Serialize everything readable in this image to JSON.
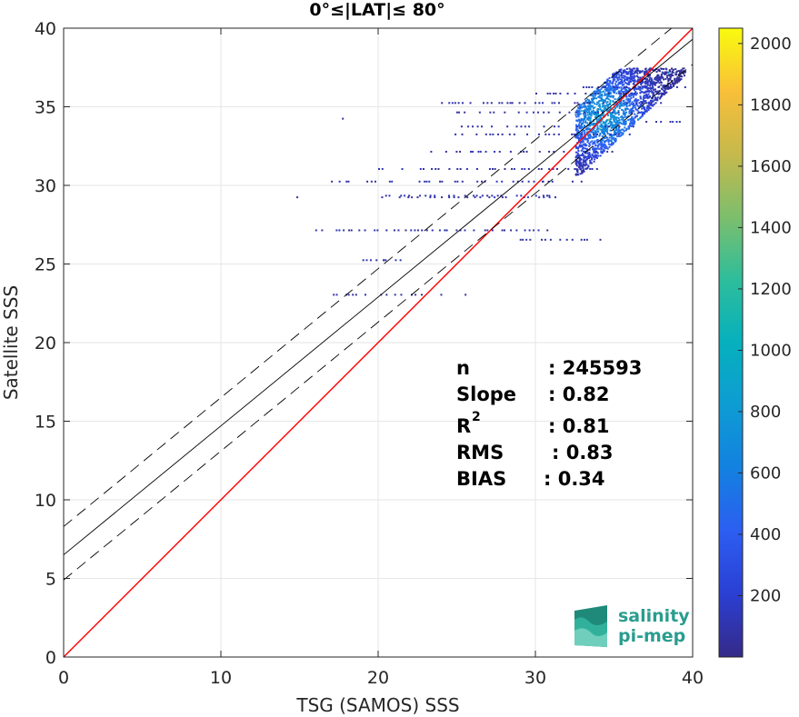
{
  "chart_data": {
    "type": "heatmap",
    "title": "0°≤|LAT|≤ 80°",
    "xlabel": "TSG (SAMOS) SSS",
    "ylabel": "Satellite SSS",
    "xlim": [
      0,
      40
    ],
    "ylim": [
      0,
      40
    ],
    "xticks": [
      "0",
      "10",
      "20",
      "30",
      "40"
    ],
    "yticks": [
      "0",
      "5",
      "10",
      "15",
      "20",
      "25",
      "30",
      "35",
      "40"
    ],
    "grid": true,
    "colorbar": {
      "range": [
        0,
        2050
      ],
      "ticks": [
        "200",
        "400",
        "600",
        "800",
        "1000",
        "1200",
        "1400",
        "1600",
        "1800",
        "2000"
      ],
      "colormap": "parula"
    },
    "lines": [
      {
        "role": "one-to-one",
        "color": "#ff0000",
        "style": "solid",
        "slope": 1.0,
        "intercept": 0.0
      },
      {
        "role": "regression fit",
        "color": "#000000",
        "style": "solid",
        "slope": 0.82,
        "intercept": 6.5
      },
      {
        "role": "fit upper bound",
        "color": "#000000",
        "style": "dashed",
        "slope": 0.82,
        "intercept": 8.3
      },
      {
        "role": "fit lower bound",
        "color": "#000000",
        "style": "dashed",
        "slope": 0.82,
        "intercept": 4.9
      }
    ],
    "density_cluster": {
      "x_range": [
        29.5,
        39.5
      ],
      "y_range": [
        29.5,
        37.5
      ],
      "peak": [
        34.3,
        34.6
      ]
    },
    "stats": [
      {
        "label": "n",
        "value": ": 245593"
      },
      {
        "label": "Slope",
        "value": ": 0.82"
      },
      {
        "label": "R",
        "superscript": "2",
        "value": ": 0.81"
      },
      {
        "label": "RMS",
        "value": ": 0.83"
      },
      {
        "label": "BIAS",
        "value": ": 0.34"
      }
    ]
  },
  "logo": {
    "line1": "salinity",
    "line2": "pi-mep",
    "color": "#2a9d8f"
  }
}
